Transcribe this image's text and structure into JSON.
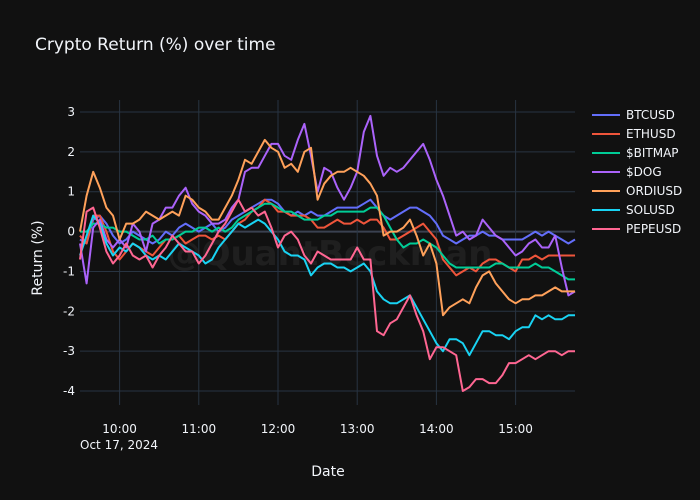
{
  "chart_data": {
    "type": "line",
    "title": "Crypto Return (%) over time",
    "xlabel": "Date",
    "ylabel": "Return (%)",
    "watermark": "@QuantBeckman",
    "date_label": "Oct 17, 2024",
    "x_ticks": [
      "10:00",
      "11:00",
      "12:00",
      "13:00",
      "14:00",
      "15:00"
    ],
    "y_ticks": [
      3,
      2,
      1,
      0,
      -1,
      -2,
      -3,
      -4
    ],
    "ylim": [
      -4.35,
      3.3
    ],
    "xlim": [
      "09:30",
      "15:45"
    ],
    "grid": true,
    "legend_position": "right",
    "x": [
      "09:30",
      "09:35",
      "09:40",
      "09:45",
      "09:50",
      "09:55",
      "10:00",
      "10:05",
      "10:10",
      "10:15",
      "10:20",
      "10:25",
      "10:30",
      "10:35",
      "10:40",
      "10:45",
      "10:50",
      "10:55",
      "11:00",
      "11:05",
      "11:10",
      "11:15",
      "11:20",
      "11:25",
      "11:30",
      "11:35",
      "11:40",
      "11:45",
      "11:50",
      "11:55",
      "12:00",
      "12:05",
      "12:10",
      "12:15",
      "12:20",
      "12:25",
      "12:30",
      "12:35",
      "12:40",
      "12:45",
      "12:50",
      "12:55",
      "13:00",
      "13:05",
      "13:10",
      "13:15",
      "13:20",
      "13:25",
      "13:30",
      "13:35",
      "13:40",
      "13:45",
      "13:50",
      "13:55",
      "14:00",
      "14:05",
      "14:10",
      "14:15",
      "14:20",
      "14:25",
      "14:30",
      "14:35",
      "14:40",
      "14:45",
      "14:50",
      "14:55",
      "15:00",
      "15:05",
      "15:10",
      "15:15",
      "15:20",
      "15:25",
      "15:30",
      "15:35",
      "15:40",
      "15:45"
    ],
    "series": [
      {
        "name": "BTCUSD",
        "color": "#636efa",
        "values": [
          -0.2,
          -0.3,
          0.3,
          0.4,
          0.2,
          -0.1,
          -0.3,
          -0.2,
          0.0,
          -0.1,
          -0.2,
          -0.3,
          -0.2,
          0.0,
          -0.1,
          0.1,
          0.2,
          0.1,
          0.0,
          0.1,
          0.2,
          0.0,
          0.1,
          0.3,
          0.4,
          0.5,
          0.6,
          0.7,
          0.8,
          0.8,
          0.7,
          0.5,
          0.4,
          0.5,
          0.4,
          0.5,
          0.4,
          0.4,
          0.5,
          0.6,
          0.6,
          0.6,
          0.6,
          0.7,
          0.8,
          0.6,
          0.4,
          0.3,
          0.4,
          0.5,
          0.6,
          0.6,
          0.5,
          0.4,
          0.2,
          -0.1,
          -0.2,
          -0.3,
          -0.2,
          -0.1,
          -0.1,
          0.0,
          -0.1,
          -0.1,
          -0.2,
          -0.2,
          -0.2,
          -0.2,
          -0.1,
          0.0,
          -0.1,
          0.0,
          -0.1,
          -0.2,
          -0.3,
          -0.2
        ]
      },
      {
        "name": "ETHUSD",
        "color": "#ef553b",
        "values": [
          -0.1,
          -0.3,
          0.4,
          0.4,
          0.0,
          -0.5,
          -0.7,
          -0.5,
          -0.3,
          -0.4,
          -0.5,
          -0.6,
          -0.4,
          -0.2,
          -0.2,
          -0.1,
          -0.3,
          -0.2,
          -0.1,
          -0.1,
          -0.2,
          -0.1,
          -0.2,
          0.0,
          0.2,
          0.3,
          0.5,
          0.6,
          0.8,
          0.7,
          0.5,
          0.5,
          0.4,
          0.4,
          0.4,
          0.3,
          0.1,
          0.1,
          0.2,
          0.3,
          0.2,
          0.2,
          0.3,
          0.2,
          0.3,
          0.3,
          0.1,
          -0.2,
          -0.2,
          -0.1,
          0.0,
          0.1,
          0.2,
          0.0,
          -0.2,
          -0.7,
          -0.9,
          -1.1,
          -1.0,
          -0.9,
          -1.0,
          -0.8,
          -0.7,
          -0.7,
          -0.8,
          -0.9,
          -1.0,
          -0.7,
          -0.7,
          -0.6,
          -0.7,
          -0.6,
          -0.6,
          -0.6,
          -0.6,
          -0.6
        ]
      },
      {
        "name": "$BITMAP",
        "color": "#00cc96",
        "values": [
          0.0,
          0.0,
          0.2,
          0.2,
          0.1,
          0.1,
          0.0,
          0.0,
          -0.1,
          -0.2,
          -0.2,
          -0.1,
          -0.3,
          -0.2,
          -0.2,
          -0.1,
          0.0,
          0.0,
          0.1,
          0.1,
          0.0,
          0.1,
          0.0,
          0.1,
          0.3,
          0.4,
          0.5,
          0.6,
          0.7,
          0.7,
          0.6,
          0.5,
          0.5,
          0.4,
          0.3,
          0.3,
          0.3,
          0.4,
          0.4,
          0.5,
          0.5,
          0.5,
          0.5,
          0.5,
          0.6,
          0.6,
          0.4,
          0.1,
          -0.2,
          -0.4,
          -0.3,
          -0.3,
          -0.2,
          -0.3,
          -0.4,
          -0.6,
          -0.8,
          -0.9,
          -0.9,
          -0.9,
          -0.9,
          -0.9,
          -0.9,
          -0.8,
          -0.8,
          -0.9,
          -0.9,
          -0.9,
          -0.9,
          -0.8,
          -0.9,
          -0.9,
          -1.0,
          -1.1,
          -1.2,
          -1.2
        ]
      },
      {
        "name": "$DOG",
        "color": "#ab63fa",
        "values": [
          -0.3,
          -1.3,
          0.1,
          0.3,
          -0.2,
          -0.4,
          -0.2,
          -0.4,
          0.2,
          0.0,
          -0.5,
          0.2,
          0.3,
          0.6,
          0.6,
          0.9,
          1.1,
          0.7,
          0.5,
          0.4,
          0.2,
          0.2,
          0.3,
          0.6,
          0.8,
          1.5,
          1.6,
          1.6,
          1.9,
          2.2,
          2.2,
          1.9,
          1.8,
          2.3,
          2.7,
          1.9,
          1.0,
          1.6,
          1.5,
          1.1,
          0.8,
          1.1,
          1.5,
          2.5,
          2.9,
          1.9,
          1.4,
          1.6,
          1.5,
          1.6,
          1.8,
          2.0,
          2.2,
          1.8,
          1.3,
          0.9,
          0.4,
          -0.1,
          0.0,
          -0.2,
          -0.1,
          0.3,
          0.1,
          -0.1,
          -0.2,
          -0.4,
          -0.6,
          -0.5,
          -0.3,
          -0.2,
          -0.4,
          -0.4,
          -0.1,
          -0.9,
          -1.6,
          -1.5
        ]
      },
      {
        "name": "ORDIUSD",
        "color": "#ffa15a",
        "values": [
          0.0,
          0.9,
          1.5,
          1.1,
          0.6,
          0.4,
          -0.2,
          0.2,
          0.2,
          0.3,
          0.5,
          0.4,
          0.3,
          0.4,
          0.5,
          0.4,
          0.9,
          0.8,
          0.6,
          0.5,
          0.3,
          0.3,
          0.6,
          0.9,
          1.3,
          1.8,
          1.7,
          2.0,
          2.3,
          2.1,
          2.0,
          1.6,
          1.7,
          1.5,
          2.0,
          2.1,
          0.8,
          1.2,
          1.4,
          1.5,
          1.5,
          1.6,
          1.5,
          1.4,
          1.2,
          0.9,
          -0.1,
          0.0,
          0.0,
          0.1,
          0.3,
          -0.1,
          -0.6,
          -0.3,
          -0.8,
          -2.1,
          -1.9,
          -1.8,
          -1.7,
          -1.8,
          -1.4,
          -1.1,
          -1.0,
          -1.3,
          -1.5,
          -1.7,
          -1.8,
          -1.7,
          -1.7,
          -1.6,
          -1.6,
          -1.5,
          -1.4,
          -1.5,
          -1.5,
          -1.5
        ]
      },
      {
        "name": "SOLUSD",
        "color": "#19d3f3",
        "values": [
          -0.6,
          -0.1,
          0.4,
          0.2,
          -0.3,
          -0.6,
          -0.4,
          -0.5,
          -0.3,
          -0.4,
          -0.6,
          -0.7,
          -0.6,
          -0.7,
          -0.5,
          -0.3,
          -0.4,
          -0.5,
          -0.6,
          -0.8,
          -0.7,
          -0.4,
          -0.2,
          0.0,
          0.2,
          0.1,
          0.2,
          0.3,
          0.2,
          0.0,
          -0.2,
          -0.5,
          -0.6,
          -0.6,
          -0.7,
          -1.1,
          -0.9,
          -0.8,
          -0.8,
          -0.9,
          -0.9,
          -1.0,
          -0.9,
          -0.8,
          -1.0,
          -1.5,
          -1.7,
          -1.8,
          -1.8,
          -1.7,
          -1.6,
          -1.9,
          -2.2,
          -2.5,
          -2.8,
          -3.0,
          -2.7,
          -2.7,
          -2.8,
          -3.1,
          -2.8,
          -2.5,
          -2.5,
          -2.6,
          -2.6,
          -2.7,
          -2.5,
          -2.4,
          -2.4,
          -2.1,
          -2.2,
          -2.1,
          -2.2,
          -2.2,
          -2.1,
          -2.1
        ]
      },
      {
        "name": "PEPEUSD",
        "color": "#ff6692",
        "values": [
          -0.7,
          0.5,
          0.6,
          0.1,
          -0.5,
          -0.8,
          -0.6,
          -0.3,
          -0.6,
          -0.7,
          -0.6,
          -0.9,
          -0.6,
          -0.4,
          -0.1,
          -0.3,
          -0.5,
          -0.5,
          -0.8,
          -0.6,
          -0.3,
          0.0,
          0.2,
          0.5,
          0.8,
          0.5,
          0.6,
          0.4,
          0.5,
          0.1,
          -0.4,
          -0.1,
          0.0,
          -0.2,
          -0.6,
          -0.8,
          -0.5,
          -0.6,
          -0.7,
          -0.7,
          -0.7,
          -0.7,
          -0.4,
          -0.7,
          -0.7,
          -2.5,
          -2.6,
          -2.3,
          -2.2,
          -1.9,
          -1.6,
          -2.1,
          -2.5,
          -3.2,
          -2.9,
          -2.9,
          -3.0,
          -3.1,
          -4.0,
          -3.9,
          -3.7,
          -3.7,
          -3.8,
          -3.8,
          -3.6,
          -3.3,
          -3.3,
          -3.2,
          -3.1,
          -3.2,
          -3.1,
          -3.0,
          -3.0,
          -3.1,
          -3.0,
          -3.0
        ]
      }
    ]
  }
}
